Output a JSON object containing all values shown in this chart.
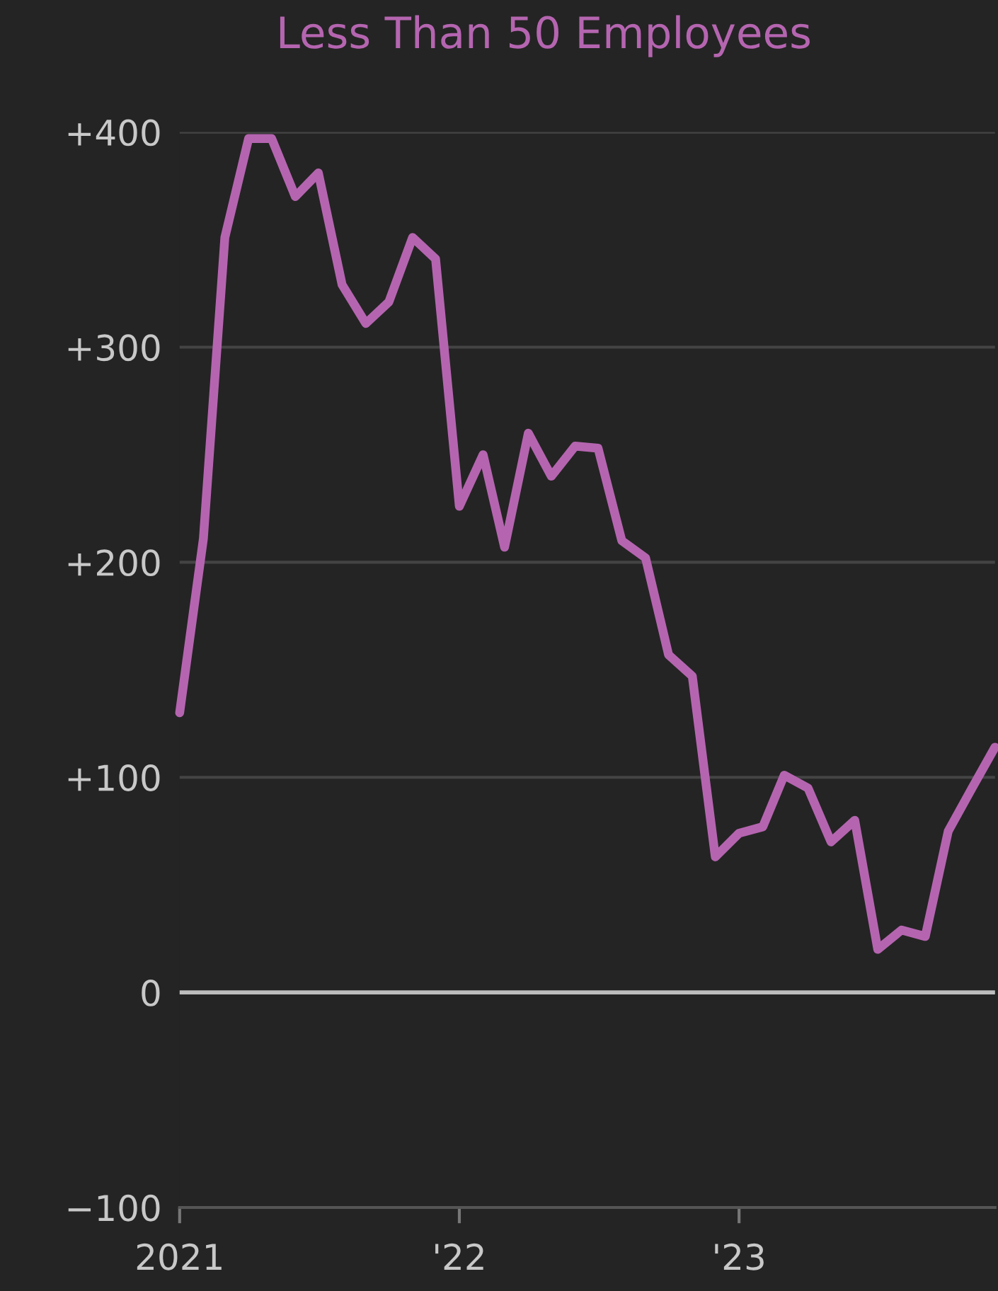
{
  "chart_data": {
    "type": "line",
    "title": "Less Than 50 Employees",
    "x": [
      "2021-01",
      "2021-02",
      "2021-03",
      "2021-04",
      "2021-05",
      "2021-06",
      "2021-07",
      "2021-08",
      "2021-09",
      "2021-10",
      "2021-11",
      "2021-12",
      "2022-01",
      "2022-02",
      "2022-03",
      "2022-04",
      "2022-05",
      "2022-06",
      "2022-07",
      "2022-08",
      "2022-09",
      "2022-10",
      "2022-11",
      "2022-12",
      "2023-01",
      "2023-02",
      "2023-03",
      "2023-04",
      "2023-05",
      "2023-06",
      "2023-07",
      "2023-08",
      "2023-09",
      "2023-10",
      "2023-11",
      "2023-12"
    ],
    "series": [
      {
        "color": "#b565b0",
        "values": [
          130,
          211,
          351,
          397,
          397,
          370,
          381,
          329,
          311,
          321,
          351,
          341,
          226,
          250,
          207,
          260,
          240,
          254,
          253,
          210,
          202,
          157,
          147,
          63,
          74,
          77,
          101,
          95,
          70,
          80,
          20,
          29,
          26,
          75,
          95,
          114
        ]
      }
    ],
    "xlim": [
      "2021-01",
      "2023-12"
    ],
    "xticks": [
      {
        "value": "2021-01",
        "label": "2021"
      },
      {
        "value": "2022-01",
        "label": "'22"
      },
      {
        "value": "2023-01",
        "label": "'23"
      }
    ],
    "ylim": [
      -100,
      400
    ],
    "yticks": [
      {
        "value": -100,
        "label": "−100"
      },
      0,
      {
        "value": 100,
        "label": "+100"
      },
      {
        "value": 200,
        "label": "+200"
      },
      {
        "value": 300,
        "label": "+300"
      },
      {
        "value": 400,
        "label": "+400"
      }
    ],
    "grid": "y",
    "marker": "none",
    "line_style": "solid",
    "ref_lines": [
      {
        "axis": "y",
        "value": 0,
        "color": "#bdbdbd"
      }
    ]
  }
}
